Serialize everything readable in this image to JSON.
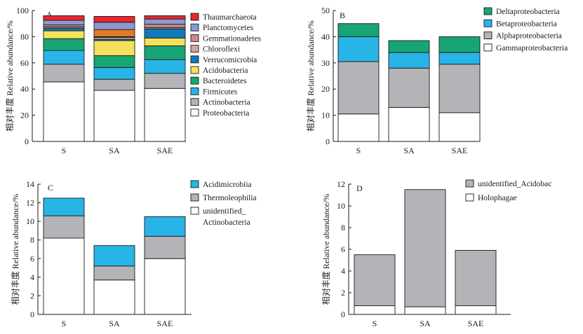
{
  "chart_data": [
    {
      "type": "bar",
      "stacked": true,
      "panel": "A",
      "ylabel": "相对丰度 Relative abundance/%",
      "ylim": [
        0,
        100
      ],
      "yticks": [
        0,
        20,
        40,
        60,
        80,
        100
      ],
      "categories": [
        "S",
        "SA",
        "SAE"
      ],
      "series": [
        {
          "name": "Proteobacteria",
          "color": "#ffffff",
          "values": [
            45.5,
            39,
            40.5
          ]
        },
        {
          "name": "Actinobacteria",
          "color": "#b4b4b8",
          "values": [
            13.5,
            8.5,
            11.5
          ]
        },
        {
          "name": "Firmicutes",
          "color": "#29b4e8",
          "values": [
            10.5,
            9,
            10.5
          ]
        },
        {
          "name": "Bacteroidetes",
          "color": "#17a673",
          "values": [
            9,
            9,
            10.5
          ]
        },
        {
          "name": "Acidobacteria",
          "color": "#f6e15a",
          "values": [
            6,
            11.5,
            6
          ]
        },
        {
          "name": "Verrucomicrobia",
          "color": "#1179b9",
          "values": [
            2,
            1,
            7
          ]
        },
        {
          "name": "Chloroflexi",
          "color": "#d0a8a0",
          "values": [
            1,
            1.5,
            1
          ]
        },
        {
          "name": "Gemmationadetes",
          "color": "#c98a8e",
          "values": [
            1.5,
            0.5,
            2.5
          ]
        },
        {
          "name": "Planctomycetes",
          "color": "#8d9ad0",
          "values": [
            3.5,
            5.5,
            4
          ]
        },
        {
          "name": "Thaumarchaeota",
          "color": "#e9252e",
          "values": [
            3.5,
            4.5,
            2.5
          ]
        }
      ],
      "extra_band": {
        "series_index": 7,
        "color": "#e07b2a",
        "values": [
          0,
          5.5,
          0
        ]
      }
    },
    {
      "type": "bar",
      "stacked": true,
      "panel": "B",
      "ylabel": "相对丰度 Relative abundance/%",
      "ylim": [
        0,
        50
      ],
      "yticks": [
        0,
        10,
        20,
        30,
        40,
        50
      ],
      "categories": [
        "S",
        "SA",
        "SAE"
      ],
      "series": [
        {
          "name": "Gammaproteobacteria",
          "color": "#ffffff",
          "values": [
            10.5,
            13,
            11
          ]
        },
        {
          "name": "Alphaproteobacteria",
          "color": "#b4b4b8",
          "values": [
            20,
            15,
            18.5
          ]
        },
        {
          "name": "Betaproteobacteria",
          "color": "#29b4e8",
          "values": [
            9.5,
            6,
            4.5
          ]
        },
        {
          "name": "Deltaproteobacteria",
          "color": "#17a673",
          "values": [
            5,
            4.5,
            6
          ]
        }
      ]
    },
    {
      "type": "bar",
      "stacked": true,
      "panel": "C",
      "ylabel": "相对丰度 Relative abundance/%",
      "ylim": [
        0,
        14
      ],
      "yticks": [
        0,
        2,
        4,
        6,
        8,
        10,
        12,
        14
      ],
      "categories": [
        "S",
        "SA",
        "SAE"
      ],
      "series": [
        {
          "name": "unidentified_ Actinobacteria",
          "color": "#ffffff",
          "values": [
            8.2,
            3.7,
            6
          ]
        },
        {
          "name": "Thermoleophilia",
          "color": "#b4b4b8",
          "values": [
            2.4,
            1.5,
            2.4
          ]
        },
        {
          "name": "Acidimicrobiia",
          "color": "#29b4e8",
          "values": [
            1.9,
            2.2,
            2.1
          ]
        }
      ]
    },
    {
      "type": "bar",
      "stacked": true,
      "panel": "D",
      "ylabel": "相对丰度 Relative abundance/%",
      "ylim": [
        0,
        12
      ],
      "yticks": [
        0,
        2,
        4,
        6,
        8,
        10,
        12
      ],
      "categories": [
        "S",
        "SA",
        "SAE"
      ],
      "series": [
        {
          "name": "Holophagae",
          "color": "#ffffff",
          "values": [
            0.8,
            0.7,
            0.8
          ]
        },
        {
          "name": "unidentified_Acidobac",
          "color": "#b4b4b8",
          "values": [
            4.7,
            10.8,
            5.1
          ]
        }
      ]
    }
  ]
}
